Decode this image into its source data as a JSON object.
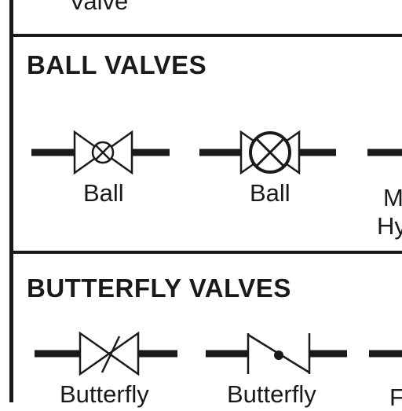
{
  "top_cutoff_label": "Valve",
  "sections": [
    {
      "heading": "BALL VALVES",
      "symbols": [
        {
          "label": "Ball",
          "icon": "ball-valve-small-circle"
        },
        {
          "label": "Ball",
          "icon": "ball-valve-large-circle"
        },
        {
          "label_line1": "M",
          "label_line2": "Hy",
          "icon": "partial-valve-cutoff"
        }
      ]
    },
    {
      "heading": "BUTTERFLY VALVES",
      "symbols": [
        {
          "label": "Butterfly",
          "icon": "butterfly-valve-bowtie"
        },
        {
          "label": "Butterfly",
          "icon": "butterfly-valve-disc"
        },
        {
          "label": "F",
          "icon": "partial-valve-cutoff"
        }
      ]
    }
  ]
}
